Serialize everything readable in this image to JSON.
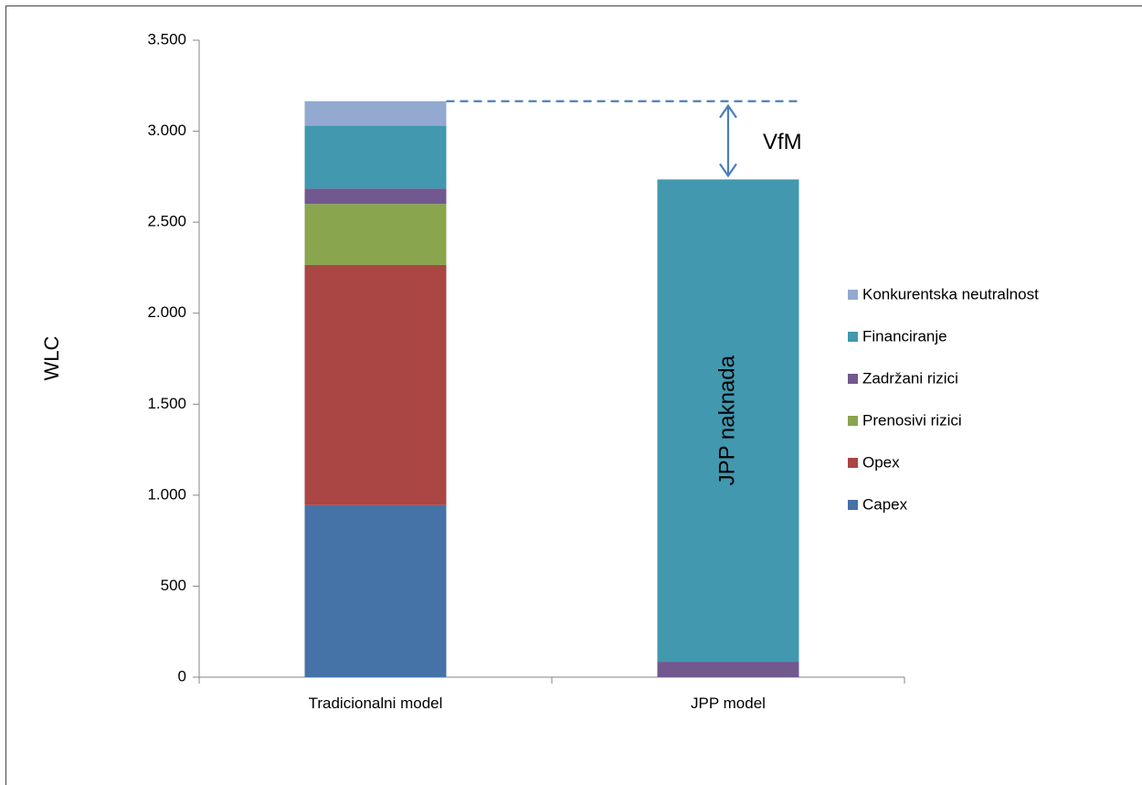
{
  "chart_data": {
    "type": "bar",
    "stacked": true,
    "ylabel": "WLC",
    "xlabel": "",
    "ylim": [
      0,
      3500
    ],
    "yticks": [
      0,
      500,
      1000,
      1500,
      2000,
      2500,
      3000,
      3500
    ],
    "ytick_labels": [
      "0",
      "500",
      "1.000",
      "1.500",
      "2.000",
      "2.500",
      "3.000",
      "3.500"
    ],
    "categories": [
      "Tradicionalni model",
      "JPP model"
    ],
    "series": [
      {
        "name": "Capex",
        "color": "#4572A7",
        "values": [
          945,
          0
        ]
      },
      {
        "name": "Opex",
        "color": "#AA4643",
        "values": [
          1320,
          0
        ]
      },
      {
        "name": "Prenosivi rizici",
        "color": "#89A54E",
        "values": [
          335,
          0
        ]
      },
      {
        "name": "Zadržani rizici",
        "color": "#71588F",
        "values": [
          85,
          85
        ]
      },
      {
        "name": "Financiranje",
        "color": "#4198AF",
        "values": [
          345,
          2650
        ]
      },
      {
        "name": "Konkurentska neutralnost",
        "color": "#93A9CF",
        "values": [
          135,
          0
        ]
      }
    ],
    "legend_position": "right",
    "grid": false,
    "annotations": {
      "vfm_label": "VfM",
      "bar_label": "JPP naknada"
    }
  }
}
